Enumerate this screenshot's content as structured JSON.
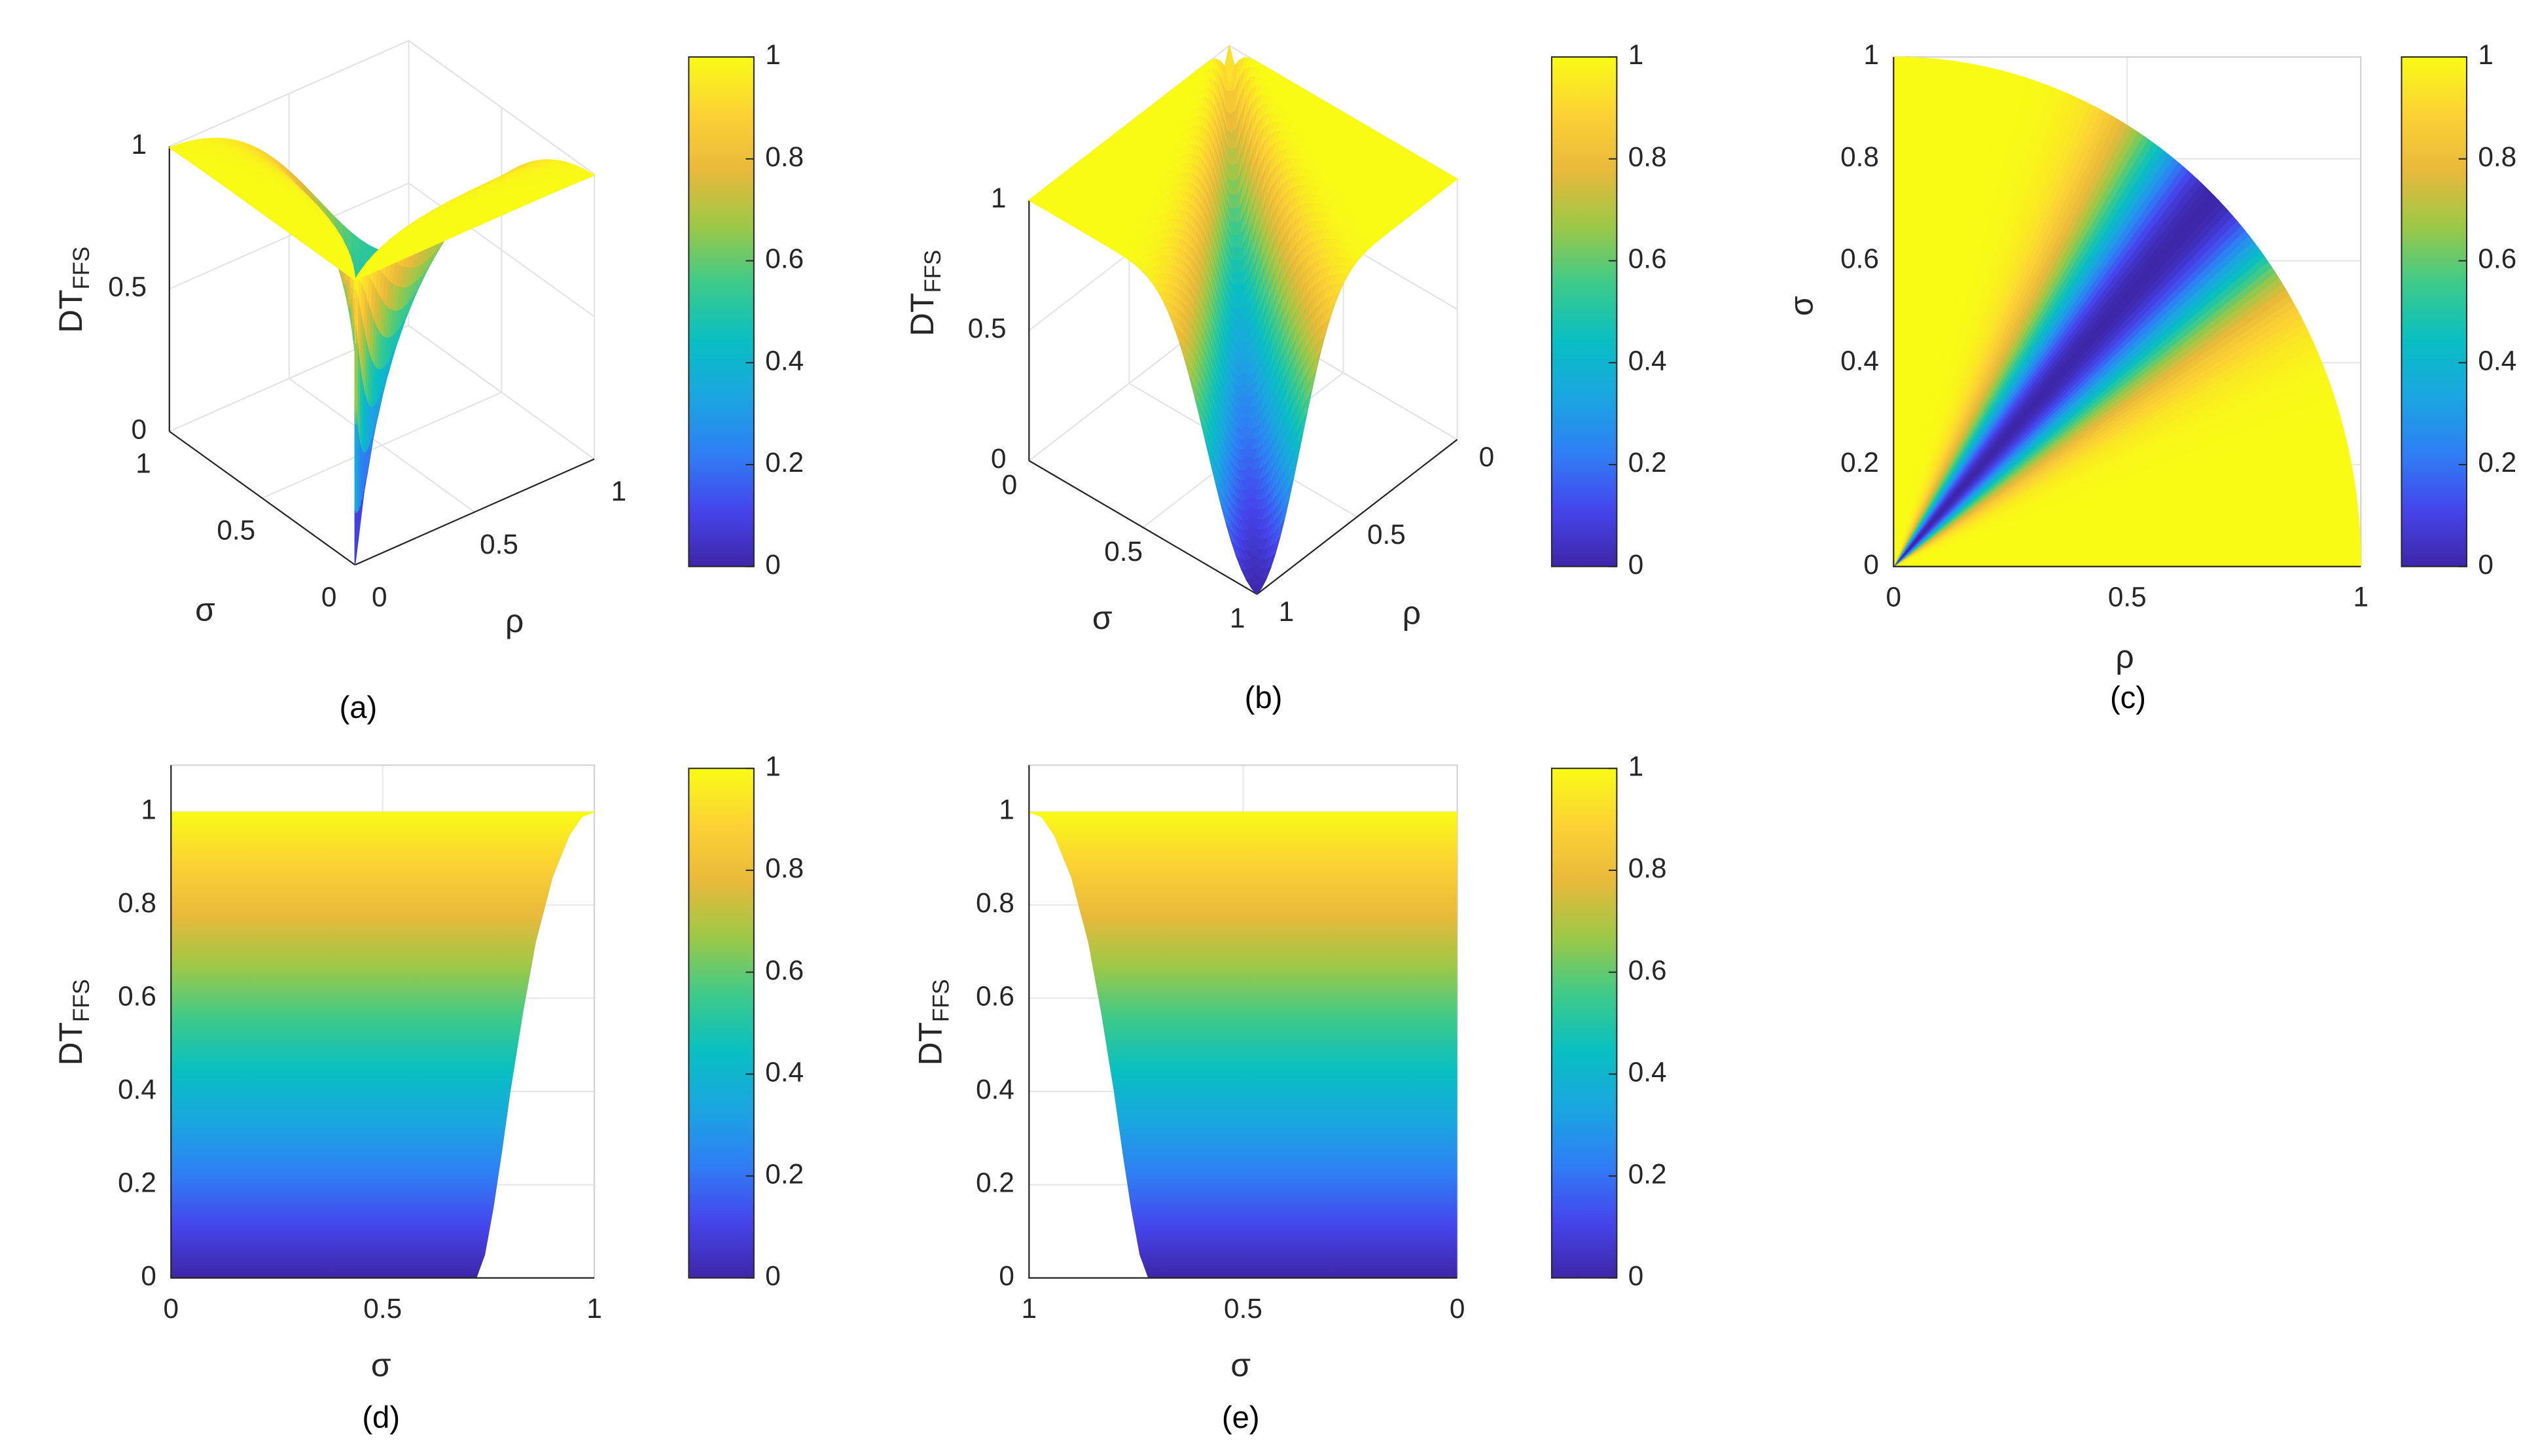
{
  "colormap": [
    "#3e26a8",
    "#4545ec",
    "#2f7ff5",
    "#1aa6e0",
    "#08bfc2",
    "#3dca8a",
    "#9cc847",
    "#e9b93a",
    "#fcd234",
    "#f9fb15"
  ],
  "chart_data": [
    {
      "type": "surface3d",
      "caption": "(a)",
      "xlabel": "ρ",
      "ylabel": "σ",
      "zlabel": "DT",
      "zlabel_subscript": "FFS",
      "xlim": [
        0,
        1
      ],
      "ylim": [
        0,
        1
      ],
      "zlim": [
        0,
        1
      ],
      "xticks": [
        0,
        0.5,
        1
      ],
      "yticks": [
        0,
        0.5,
        1
      ],
      "zticks": [
        0,
        0.5,
        1
      ],
      "clim": [
        0,
        1
      ],
      "colorbar_ticks": [
        0,
        0.2,
        0.4,
        0.6,
        0.8,
        1
      ]
    },
    {
      "type": "surface3d",
      "caption": "(b)",
      "xlabel": "ρ",
      "ylabel": "σ",
      "zlabel": "DT",
      "zlabel_subscript": "FFS",
      "xlim": [
        0,
        1
      ],
      "ylim": [
        0,
        1
      ],
      "zlim": [
        0,
        1
      ],
      "xticks": [
        0,
        0.5,
        1
      ],
      "yticks": [
        0,
        0.5,
        1
      ],
      "zticks": [
        0,
        0.5,
        1
      ],
      "clim": [
        0,
        1
      ],
      "colorbar_ticks": [
        0,
        0.2,
        0.4,
        0.6,
        0.8,
        1
      ]
    },
    {
      "type": "heatmap",
      "caption": "(c)",
      "xlabel": "ρ",
      "ylabel": "σ",
      "xlim": [
        0,
        1
      ],
      "ylim": [
        0,
        1
      ],
      "xticks": [
        0,
        0.5,
        1
      ],
      "yticks": [
        0,
        0.2,
        0.4,
        0.6,
        0.8,
        1
      ],
      "grid": true,
      "clim": [
        0,
        1
      ],
      "colorbar_ticks": [
        0,
        0.2,
        0.4,
        0.6,
        0.8,
        1
      ]
    },
    {
      "type": "area",
      "caption": "(d)",
      "xlabel": "σ",
      "ylabel": "DT",
      "ylabel_subscript": "FFS",
      "xlim": [
        0,
        1
      ],
      "ylim": [
        0,
        1.1
      ],
      "xticks": [
        0,
        0.5,
        1
      ],
      "yticks": [
        0,
        0.2,
        0.4,
        0.6,
        0.8,
        1
      ],
      "grid": true,
      "x": [
        0.72,
        0.74,
        0.76,
        0.78,
        0.8,
        0.83,
        0.86,
        0.9,
        0.94,
        0.97,
        1
      ],
      "values": [
        0,
        0.05,
        0.15,
        0.27,
        0.4,
        0.57,
        0.72,
        0.86,
        0.95,
        0.99,
        1
      ],
      "clim": [
        0,
        1
      ],
      "colorbar_ticks": [
        0,
        0.2,
        0.4,
        0.6,
        0.8,
        1
      ]
    },
    {
      "type": "area",
      "caption": "(e)",
      "xlabel": "σ",
      "ylabel": "DT",
      "ylabel_subscript": "FFS",
      "xlim": [
        1,
        0
      ],
      "ylim": [
        0,
        1.1
      ],
      "xticks": [
        1,
        0.5,
        0
      ],
      "yticks": [
        0,
        0.2,
        0.4,
        0.6,
        0.8,
        1
      ],
      "grid": true,
      "x": [
        0.72,
        0.74,
        0.76,
        0.78,
        0.8,
        0.83,
        0.86,
        0.9,
        0.94,
        0.97,
        1
      ],
      "values": [
        0,
        0.05,
        0.15,
        0.27,
        0.4,
        0.57,
        0.72,
        0.86,
        0.95,
        0.99,
        1
      ],
      "clim": [
        0,
        1
      ],
      "colorbar_ticks": [
        0,
        0.2,
        0.4,
        0.6,
        0.8,
        1
      ]
    }
  ]
}
